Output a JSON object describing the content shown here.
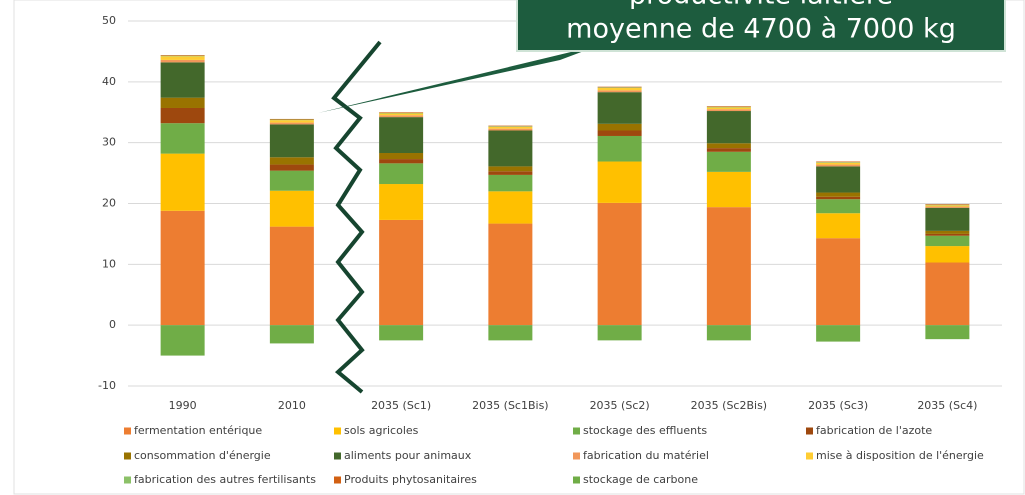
{
  "chart_data": {
    "type": "stacked-bar",
    "annotations": [
      "productivité laitière",
      "moyenne de 4700 à 7000 kg"
    ],
    "categories": [
      "1990",
      "2010",
      "2035 (Sc1)",
      "2035 (Sc1Bis)",
      "2035 (Sc2)",
      "2035 (Sc2Bis)",
      "2035 (Sc3)",
      "2035 (Sc4)"
    ],
    "series": [
      {
        "name": "fermentation entérique",
        "color": "#ed7d31",
        "values": [
          18.8,
          16.2,
          17.3,
          16.7,
          20.1,
          19.4,
          14.3,
          10.3
        ]
      },
      {
        "name": "sols agricoles",
        "color": "#ffc000",
        "values": [
          9.4,
          5.9,
          5.9,
          5.3,
          6.8,
          5.8,
          4.1,
          2.7
        ]
      },
      {
        "name": "stockage des effluents",
        "color": "#70ad47",
        "values": [
          5.0,
          3.3,
          3.4,
          2.7,
          4.2,
          3.3,
          2.3,
          1.7
        ]
      },
      {
        "name": "fabrication de l'azote",
        "color": "#9e480e",
        "values": [
          2.5,
          1.0,
          0.7,
          0.6,
          0.9,
          0.6,
          0.4,
          0.3
        ]
      },
      {
        "name": "consommation d'énergie",
        "color": "#997300",
        "values": [
          1.7,
          1.2,
          1.0,
          0.8,
          1.1,
          0.8,
          0.7,
          0.5
        ]
      },
      {
        "name": "aliments pour animaux",
        "color": "#43682b",
        "values": [
          5.8,
          5.4,
          5.9,
          5.9,
          5.2,
          5.3,
          4.3,
          3.8
        ]
      },
      {
        "name": "fabrication du matériel",
        "color": "#f1975a",
        "values": [
          0.4,
          0.3,
          0.3,
          0.3,
          0.3,
          0.3,
          0.3,
          0.2
        ]
      },
      {
        "name": "mise à disposition de l'énergie",
        "color": "#ffcd33",
        "values": [
          0.6,
          0.4,
          0.3,
          0.3,
          0.4,
          0.3,
          0.3,
          0.2
        ]
      },
      {
        "name": "fabrication des autres fertilisants",
        "color": "#8cc168",
        "values": [
          0.1,
          0.1,
          0.1,
          0.1,
          0.1,
          0.1,
          0.1,
          0.1
        ]
      },
      {
        "name": "Produits phytosanitaires",
        "color": "#d26012",
        "values": [
          0.1,
          0.1,
          0.1,
          0.1,
          0.1,
          0.1,
          0.1,
          0.1
        ]
      },
      {
        "name": "stockage de carbone",
        "color": "#70ad47",
        "values": [
          -5.0,
          -3.0,
          -2.5,
          -2.5,
          -2.5,
          -2.5,
          -2.7,
          -2.3
        ]
      }
    ],
    "ylim": [
      -10,
      50
    ],
    "yticks": [
      -10,
      0,
      10,
      20,
      30,
      40,
      50
    ],
    "grid": true
  }
}
